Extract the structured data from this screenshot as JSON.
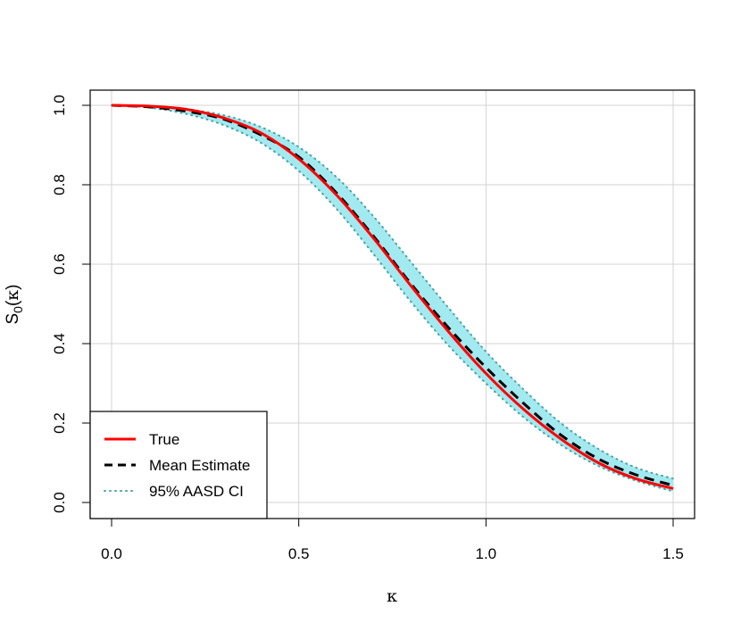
{
  "chart_data": {
    "type": "line",
    "title": "",
    "xlabel": "κ",
    "ylabel": {
      "main": "S",
      "sub": "0",
      "paren_open": "(",
      "arg": "κ",
      "paren_close": ")"
    },
    "xlim": [
      0.0,
      1.5
    ],
    "ylim": [
      0.0,
      1.0
    ],
    "xticks": [
      "0.0",
      "0.5",
      "1.0",
      "1.5"
    ],
    "yticks": [
      "0.0",
      "0.2",
      "0.4",
      "0.6",
      "0.8",
      "1.0"
    ],
    "grid": true,
    "legend_position": "bottom-left",
    "x": [
      0.0,
      0.1,
      0.2,
      0.3,
      0.4,
      0.5,
      0.6,
      0.7,
      0.8,
      0.9,
      1.0,
      1.1,
      1.2,
      1.3,
      1.4,
      1.5
    ],
    "series": [
      {
        "name": "True",
        "style": "solid",
        "color": "#ff0000",
        "values": [
          1.0,
          0.998,
          0.99,
          0.968,
          0.93,
          0.865,
          0.775,
          0.665,
          0.545,
          0.43,
          0.325,
          0.235,
          0.16,
          0.1,
          0.06,
          0.035
        ]
      },
      {
        "name": "Mean Estimate",
        "style": "dashed",
        "color": "#000000",
        "values": [
          1.0,
          0.996,
          0.985,
          0.965,
          0.925,
          0.87,
          0.78,
          0.67,
          0.55,
          0.44,
          0.34,
          0.25,
          0.17,
          0.11,
          0.07,
          0.043
        ]
      },
      {
        "name": "95% AASD CI",
        "style": "dotted",
        "color": "#4aa3a3",
        "fill": "#a2e9f0",
        "lower": [
          1.0,
          0.994,
          0.978,
          0.95,
          0.905,
          0.835,
          0.74,
          0.625,
          0.505,
          0.395,
          0.3,
          0.215,
          0.145,
          0.092,
          0.055,
          0.028
        ],
        "upper": [
          1.0,
          0.998,
          0.99,
          0.975,
          0.945,
          0.895,
          0.82,
          0.72,
          0.605,
          0.49,
          0.38,
          0.285,
          0.2,
          0.135,
          0.088,
          0.06
        ]
      }
    ]
  }
}
